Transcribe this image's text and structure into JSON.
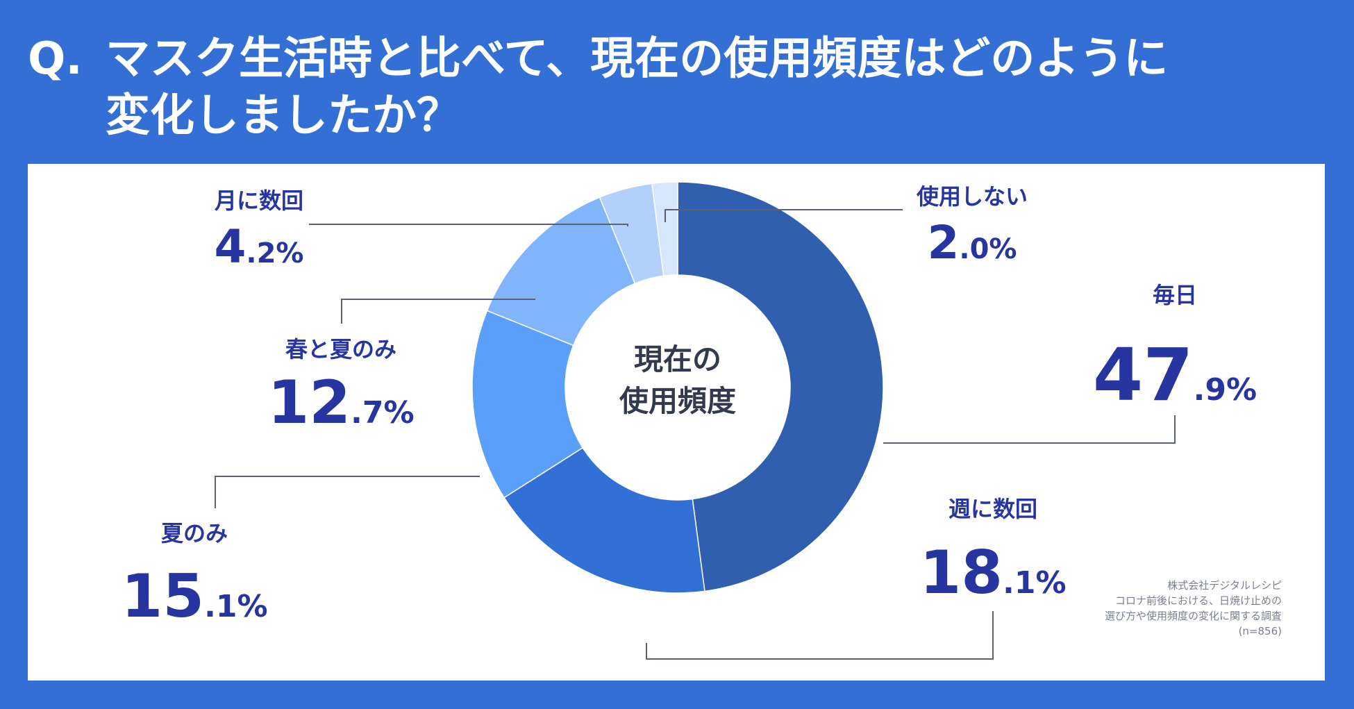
{
  "question": {
    "prefix": "Q.",
    "line1": "マスク生活時と比べて、現在の使用頻度はどのように",
    "line2": "変化しましたか？"
  },
  "chart_data": {
    "type": "pie",
    "subtype": "donut",
    "center_label_line1": "現在の",
    "center_label_line2": "使用頻度",
    "categories": [
      "毎日",
      "週に数回",
      "夏のみ",
      "春と夏のみ",
      "月に数回",
      "使用しない"
    ],
    "values": [
      47.9,
      18.1,
      15.1,
      12.7,
      4.2,
      2.0
    ],
    "value_int": [
      "47",
      "18",
      "15",
      "12",
      "4",
      "2"
    ],
    "value_dec": [
      ".9%",
      ".1%",
      ".1%",
      ".7%",
      ".2%",
      ".0%"
    ],
    "colors": [
      "#2f5fae",
      "#3270d5",
      "#5a9ff9",
      "#80b5fb",
      "#b2d0fc",
      "#d5e6fd"
    ]
  },
  "source": {
    "line1": "株式会社デジタルレシピ",
    "line2": "コロナ前後における、日焼け止めの",
    "line3": "選び方や使用頻度の変化に関する調査",
    "line4": "(n=856)"
  }
}
